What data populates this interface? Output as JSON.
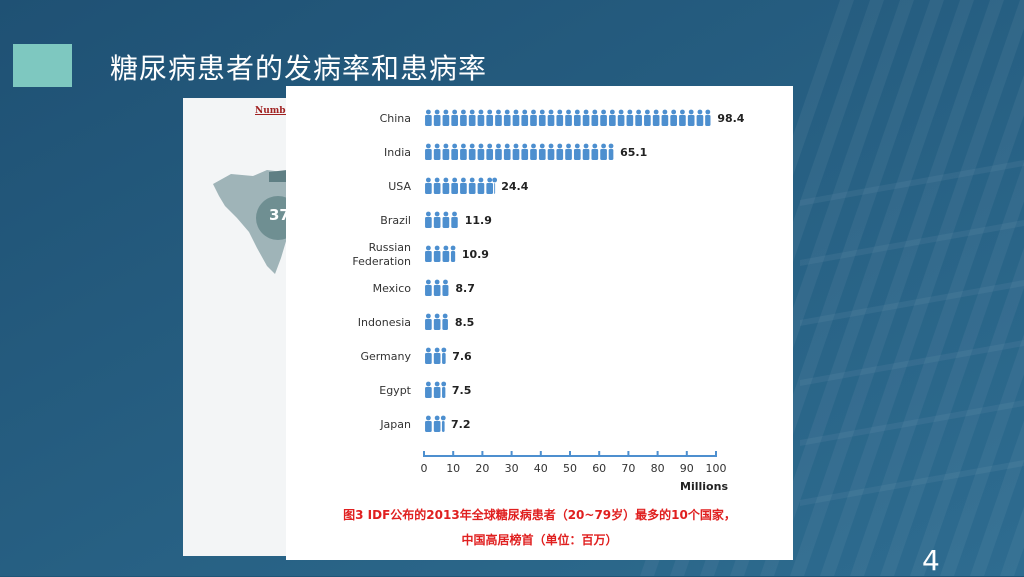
{
  "slide": {
    "title": "糖尿病患者的发病率和患病率",
    "page_number": "4"
  },
  "background_panel": {
    "label": "Numbe",
    "badge_value": "37"
  },
  "colors": {
    "background": "#1f5578",
    "accent_square": "#7ec8c0",
    "bar": "#4d8fcf",
    "caption": "#e02020"
  },
  "caption": {
    "line1": "图3 IDF公布的2013年全球糖尿病患者（20~79岁）最多的10个国家，",
    "line2": "中国高居榜首（单位：百万）"
  },
  "chart_data": {
    "type": "bar",
    "orientation": "horizontal",
    "mark": "pictogram (person icons)",
    "categories": [
      "China",
      "India",
      "USA",
      "Brazil",
      "Russian Federation",
      "Mexico",
      "Indonesia",
      "Germany",
      "Egypt",
      "Japan"
    ],
    "category_lines": [
      [
        "China"
      ],
      [
        "India"
      ],
      [
        "USA"
      ],
      [
        "Brazil"
      ],
      [
        "Russian",
        "Federation"
      ],
      [
        "Mexico"
      ],
      [
        "Indonesia"
      ],
      [
        "Germany"
      ],
      [
        "Egypt"
      ],
      [
        "Japan"
      ]
    ],
    "values": [
      98.4,
      65.1,
      24.4,
      11.9,
      10.9,
      8.7,
      8.5,
      7.6,
      7.5,
      7.2
    ],
    "value_labels": [
      "98.4",
      "65.1",
      "24.4",
      "11.9",
      "10.9",
      "8.7",
      "8.5",
      "7.6",
      "7.5",
      "7.2"
    ],
    "xlabel": "Millions",
    "xlim": [
      0,
      100
    ],
    "xticks": [
      0,
      10,
      20,
      30,
      40,
      50,
      60,
      70,
      80,
      90,
      100
    ],
    "units_per_icon": 3,
    "grid": false
  }
}
